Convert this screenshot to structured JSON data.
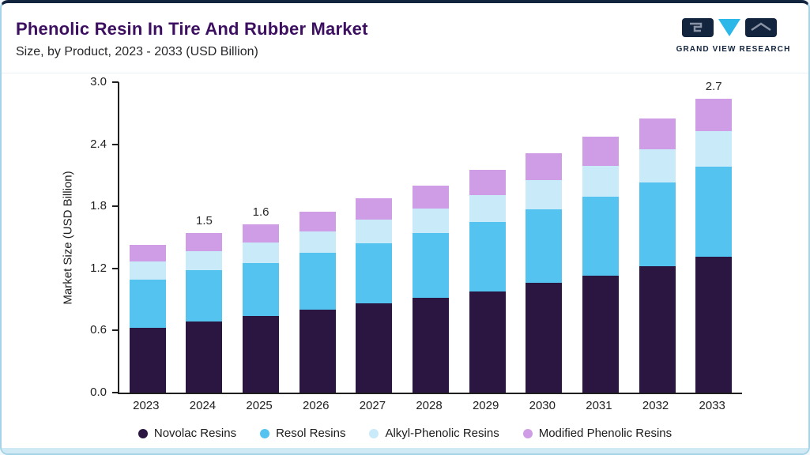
{
  "header": {
    "title": "Phenolic Resin In Tire And Rubber Market",
    "subtitle": "Size, by Product, 2023 - 2033 (USD Billion)",
    "logo_text": "GRAND VIEW RESEARCH"
  },
  "colors": {
    "title": "#3c0f61",
    "accent_navy": "#13243e",
    "logo_cyan": "#2bb7e8",
    "card_border": "#a6d3e6",
    "axis": "#1f1f1f",
    "bottom_strip": "#cfe9f5"
  },
  "chart_data": {
    "type": "bar",
    "stacked": true,
    "title": "Phenolic Resin In Tire And Rubber Market Size, by Product, 2023 - 2033 (USD Billion)",
    "xlabel": "",
    "ylabel": "Market Size (USD Billion)",
    "ylim": [
      0.0,
      3.0
    ],
    "ytick_labels": [
      "0.0",
      "0.6",
      "1.2",
      "1.8",
      "2.4",
      "3.0"
    ],
    "grid": false,
    "legend_position": "bottom",
    "categories": [
      "2023",
      "2024",
      "2025",
      "2026",
      "2027",
      "2028",
      "2029",
      "2030",
      "2031",
      "2032",
      "2033"
    ],
    "series": [
      {
        "name": "Novolac Resins",
        "color": "#2b1642",
        "values": [
          0.63,
          0.69,
          0.74,
          0.8,
          0.86,
          0.92,
          0.98,
          1.06,
          1.13,
          1.22,
          1.31
        ]
      },
      {
        "name": "Resol Resins",
        "color": "#55c3ef",
        "values": [
          0.46,
          0.49,
          0.51,
          0.55,
          0.58,
          0.62,
          0.67,
          0.71,
          0.76,
          0.81,
          0.87
        ]
      },
      {
        "name": "Alkyl-Phenolic Resins",
        "color": "#c8eaf9",
        "values": [
          0.18,
          0.19,
          0.2,
          0.21,
          0.23,
          0.24,
          0.26,
          0.28,
          0.3,
          0.32,
          0.35
        ]
      },
      {
        "name": "Modified Phenolic Resins",
        "color": "#cf9de6",
        "values": [
          0.16,
          0.17,
          0.18,
          0.19,
          0.21,
          0.22,
          0.24,
          0.26,
          0.28,
          0.3,
          0.31
        ]
      }
    ],
    "bar_labels": {
      "2024": "1.5",
      "2025": "1.6",
      "2033": "2.7"
    }
  }
}
